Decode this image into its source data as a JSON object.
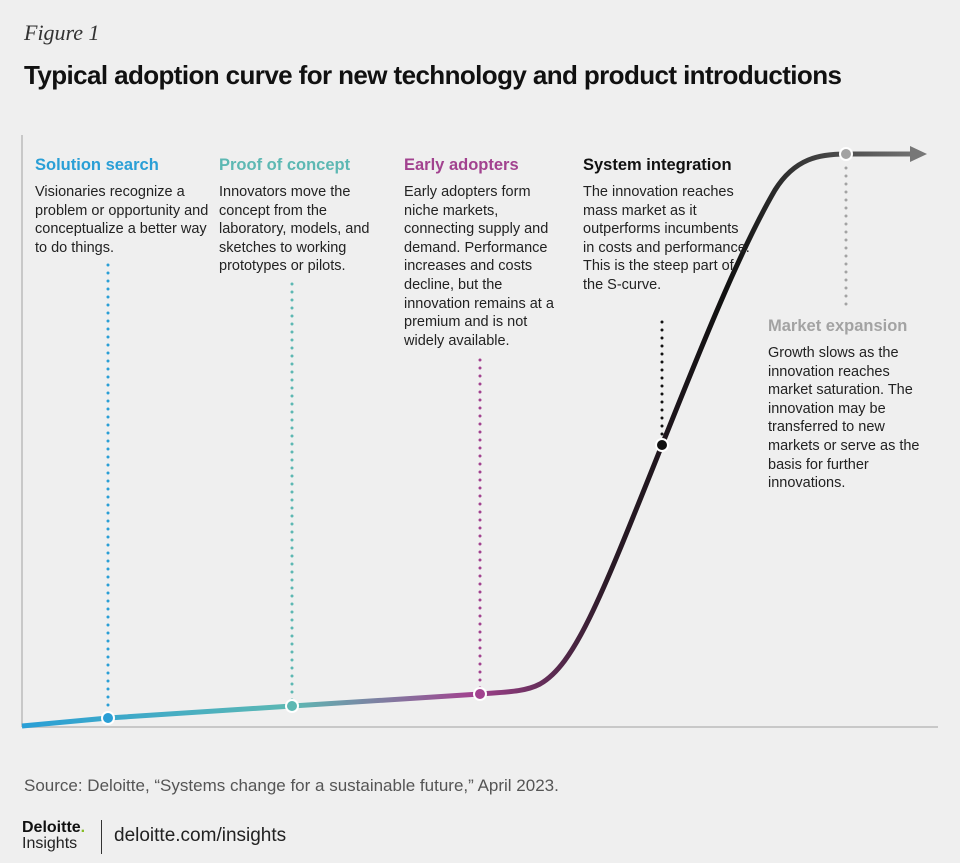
{
  "figure_label": "Figure 1",
  "title": "Typical adoption curve for new technology and product introductions",
  "colors": {
    "solution_search": "#2a9fd6",
    "proof_of_concept": "#5db8b3",
    "early_adopters": "#a2428f",
    "system_integration": "#111111",
    "market_expansion": "#a3a3a3",
    "background": "#efefef"
  },
  "stages": [
    {
      "title": "Solution search",
      "text": "Visionaries recognize a problem or opportunity and conceptualize a better way to do things."
    },
    {
      "title": "Proof of concept",
      "text": "Innovators move the concept from the laboratory, models, and sketches to working prototypes or pilots."
    },
    {
      "title": "Early adopters",
      "text": "Early adopters form niche markets, connecting supply and demand. Performance increases and costs decline, but the innovation remains at a premium and is not widely available."
    },
    {
      "title": "System integration",
      "text": "The innovation reaches mass market as it outperforms incumbents in costs and performance. This is the steep part of the S-curve."
    },
    {
      "title": "Market expansion",
      "text": "Growth slows as the innovation reaches market saturation. The innovation may be transferred to new markets or serve as the basis for further innovations."
    }
  ],
  "source": "Source: Deloitte, “Systems change for a sustainable future,” April 2023.",
  "footer": {
    "logo_name": "Deloitte.",
    "logo_sub": "Insights",
    "url": "deloitte.com/insights"
  }
}
